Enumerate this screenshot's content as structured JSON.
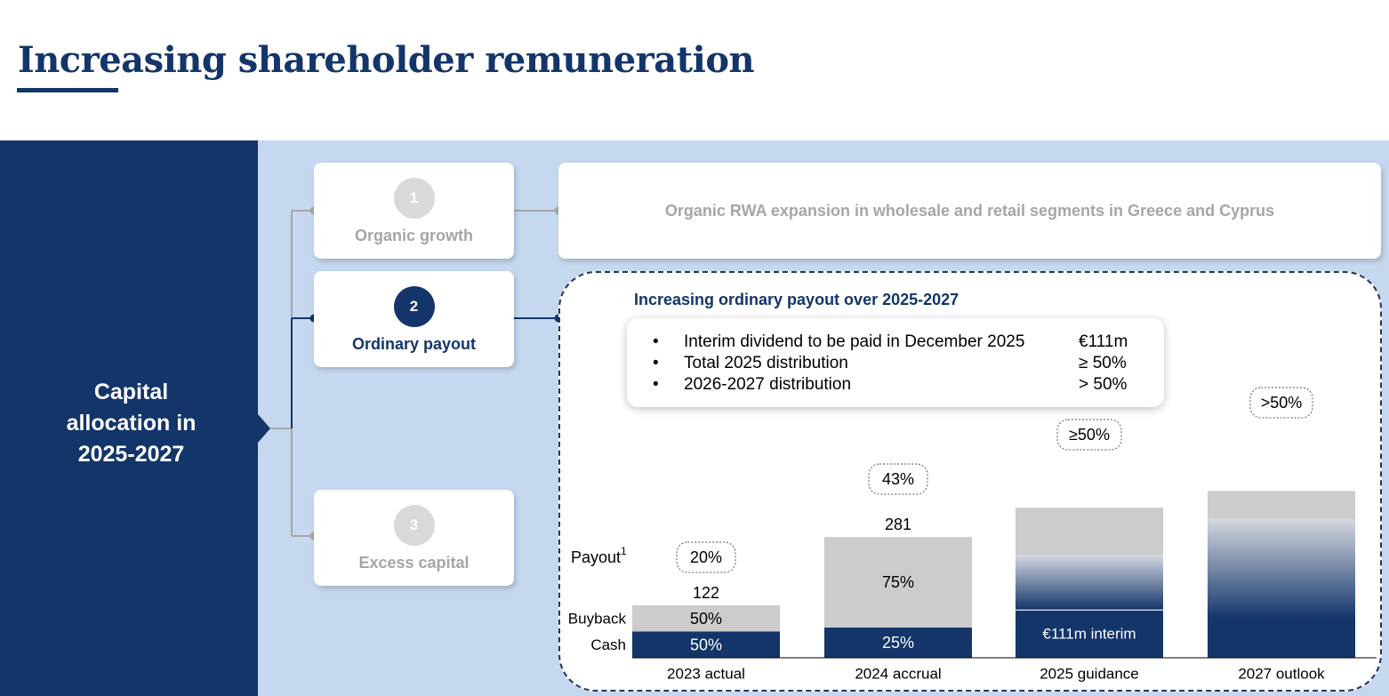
{
  "page": {
    "title": "Increasing shareholder remuneration",
    "left_panel_text": [
      "Capital",
      "allocation in",
      "2025-2027"
    ],
    "steps": [
      {
        "number": "1",
        "label": "Organic growth",
        "active": false
      },
      {
        "number": "2",
        "label": "Ordinary payout",
        "active": true
      },
      {
        "number": "3",
        "label": "Excess capital",
        "active": false
      }
    ],
    "organic_description": "Organic RWA expansion in wholesale and retail segments in Greece and Cyprus",
    "payout_heading": "Increasing ordinary payout over 2025-2027",
    "bullet_symbol": "•",
    "bullets": [
      {
        "text": "Interim dividend to be paid in December 2025",
        "value": "€111m"
      },
      {
        "text": "Total 2025 distribution",
        "value": "≥ 50%"
      },
      {
        "text": "2026-2027 distribution",
        "value": "> 50%"
      }
    ]
  },
  "colors": {
    "navy": "#13356a",
    "light_blue": "#c5d8ef",
    "grey": "#cccccc",
    "muted_text": "#a6a6a6"
  },
  "chart_data": {
    "type": "bar",
    "stacked": true,
    "categories": [
      "2023 actual",
      "2024 accrual",
      "2025 guidance",
      "2027 outlook"
    ],
    "totals": [
      122,
      281,
      null,
      null
    ],
    "payout_label": "Payout",
    "payout_footnote": "1",
    "payout_ratios": [
      "20%",
      "43%",
      "≥50%",
      ">50%"
    ],
    "series": [
      {
        "name": "Cash",
        "shares": [
          "50%",
          "25%",
          null,
          null
        ],
        "values": [
          61,
          70.25,
          null,
          null
        ]
      },
      {
        "name": "Buyback",
        "shares": [
          "50%",
          "75%",
          null,
          null
        ],
        "values": [
          61,
          210.75,
          null,
          null
        ]
      }
    ],
    "annotations": {
      "interim_label": "€111m interim",
      "interim_value": 111
    },
    "estimated_heights": {
      "2025 guidance": 349,
      "2027 outlook": 388
    },
    "gradient_segments": {
      "2025 guidance": {
        "cash": 111,
        "gradient_top": 239,
        "grey_top": 349
      },
      "2027 outlook": {
        "navy_solid_top": 90,
        "gradient_top": 323,
        "grey_top": 388
      }
    }
  }
}
